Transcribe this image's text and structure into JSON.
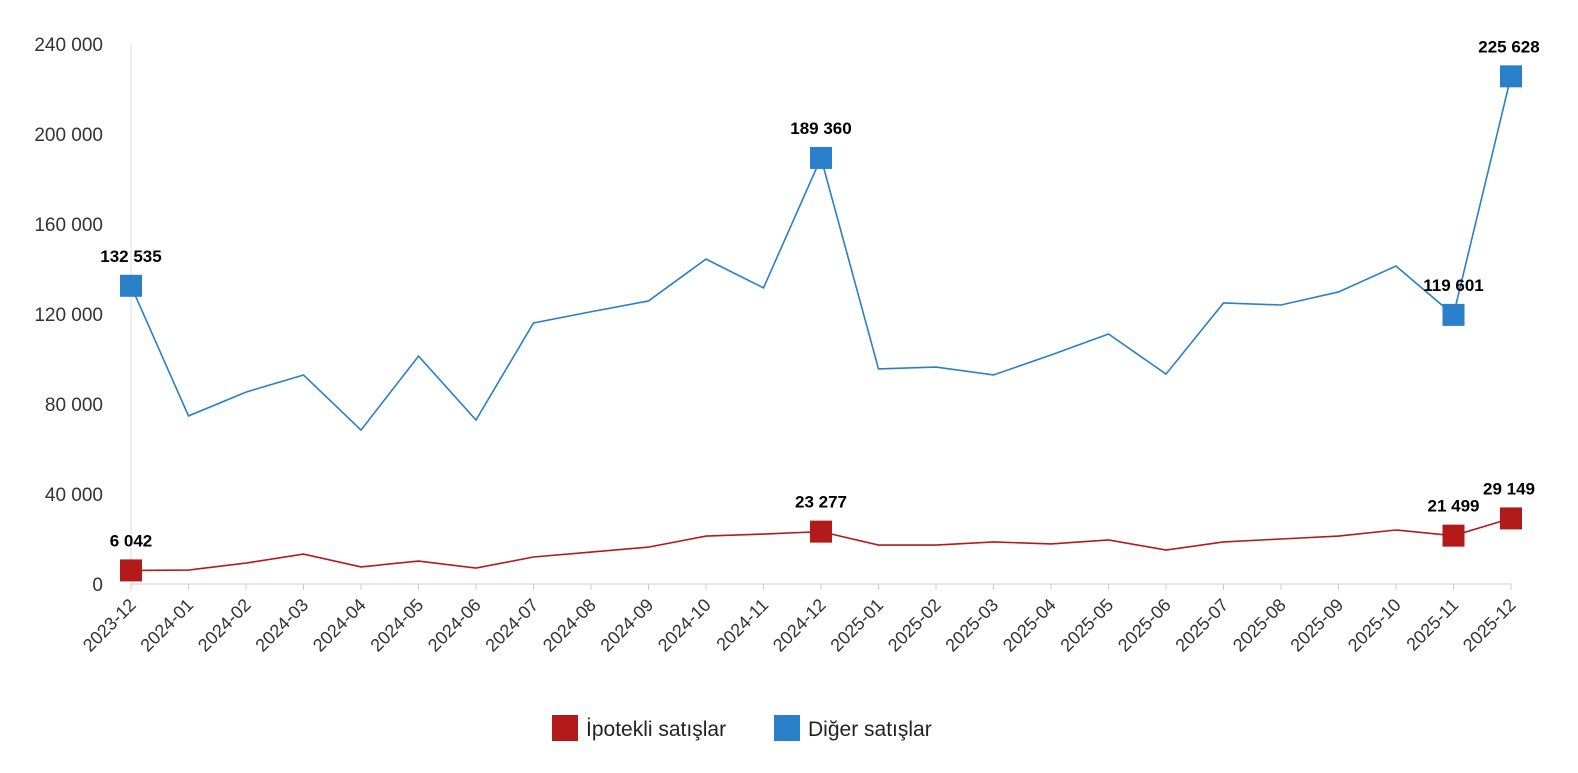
{
  "chart_data": {
    "type": "line",
    "title": "",
    "xlabel": "",
    "ylabel": "",
    "ylim": [
      0,
      240000
    ],
    "yticks": [
      0,
      40000,
      80000,
      120000,
      160000,
      200000,
      240000
    ],
    "ytick_labels": [
      "0",
      "40 000",
      "80 000",
      "120 000",
      "160 000",
      "200 000",
      "240 000"
    ],
    "grid": false,
    "legend_position": "bottom",
    "categories": [
      "2023-12",
      "2024-01",
      "2024-02",
      "2024-03",
      "2024-04",
      "2024-05",
      "2024-06",
      "2024-07",
      "2024-08",
      "2024-09",
      "2024-10",
      "2024-11",
      "2024-12",
      "2025-01",
      "2025-02",
      "2025-03",
      "2025-04",
      "2025-05",
      "2025-06",
      "2025-07",
      "2025-08",
      "2025-09",
      "2025-10",
      "2025-11",
      "2025-12"
    ],
    "series": [
      {
        "name": "İpotekli satışlar",
        "color": "#b31b1b",
        "values": [
          6042,
          6200,
          9300,
          13300,
          7600,
          10200,
          7100,
          12000,
          14200,
          16400,
          21300,
          22200,
          23277,
          17300,
          17300,
          18700,
          17800,
          19600,
          15100,
          18700,
          20000,
          21300,
          24000,
          21499,
          29149
        ],
        "labeled_points": [
          {
            "index": 0,
            "label": "6 042"
          },
          {
            "index": 12,
            "label": "23 277"
          },
          {
            "index": 23,
            "label": "21 499"
          },
          {
            "index": 24,
            "label": "29 149"
          }
        ]
      },
      {
        "name": "Diğer satışlar",
        "color": "#2a7fc9",
        "values": [
          132535,
          74700,
          85300,
          92900,
          68400,
          101300,
          72900,
          116000,
          121000,
          125800,
          144400,
          131600,
          189360,
          95600,
          96400,
          92900,
          101800,
          111100,
          93300,
          124900,
          124000,
          129800,
          141300,
          119601,
          225628
        ],
        "labeled_points": [
          {
            "index": 0,
            "label": "132 535"
          },
          {
            "index": 12,
            "label": "189 360"
          },
          {
            "index": 23,
            "label": "119 601"
          },
          {
            "index": 24,
            "label": "225 628"
          }
        ]
      }
    ]
  }
}
